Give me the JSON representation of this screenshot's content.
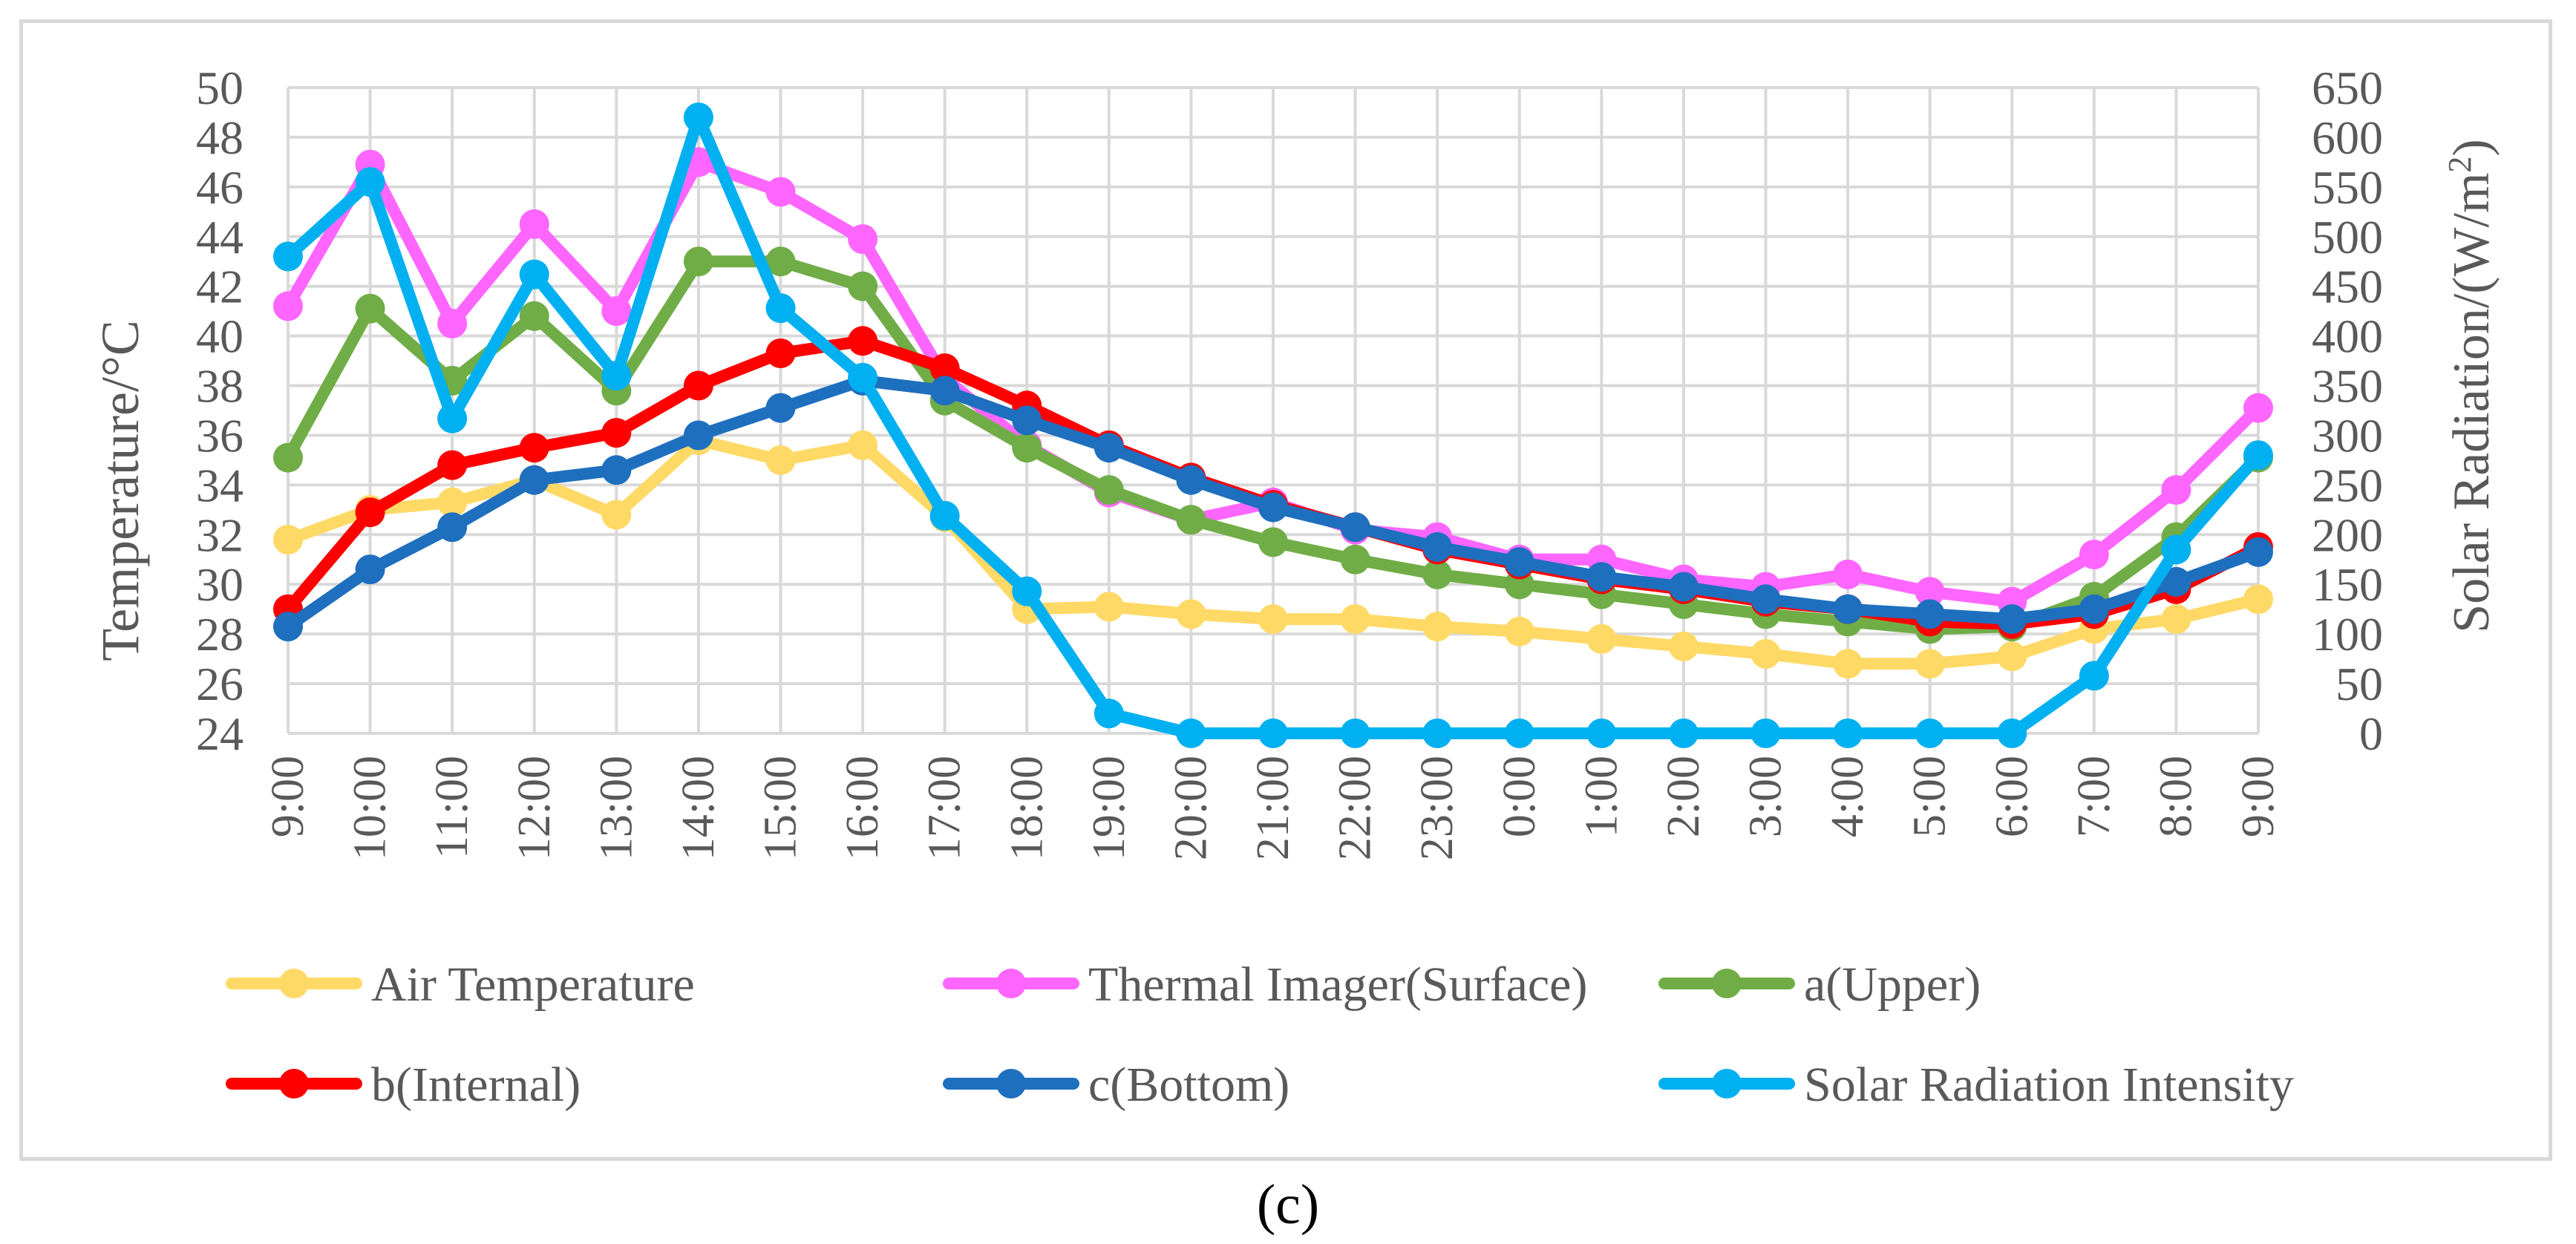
{
  "caption": "(c)",
  "colors": {
    "air": "#FFD966",
    "thermal": "#FF66FF",
    "upper": "#70AD47",
    "internal": "#FF0000",
    "bottom": "#1F6FBF",
    "solar": "#00B0F0",
    "grid": "#d9d9d9",
    "text": "#595959"
  },
  "chart_data": {
    "type": "line",
    "categories": [
      "9:00",
      "10:00",
      "11:00",
      "12:00",
      "13:00",
      "14:00",
      "15:00",
      "16:00",
      "17:00",
      "18:00",
      "19:00",
      "20:00",
      "21:00",
      "22:00",
      "23:00",
      "0:00",
      "1:00",
      "2:00",
      "3:00",
      "4:00",
      "5:00",
      "6:00",
      "7:00",
      "8:00",
      "9:00"
    ],
    "ylabel": "Temperature/°C",
    "ylim": [
      24,
      50
    ],
    "yticks": [
      24,
      26,
      28,
      30,
      32,
      34,
      36,
      38,
      40,
      42,
      44,
      46,
      48,
      50
    ],
    "y2label_main": "Solar Radiation/(W/m",
    "y2label_sup": "2",
    "y2label_end": ")",
    "y2lim": [
      0,
      650
    ],
    "y2ticks": [
      0,
      50,
      100,
      150,
      200,
      250,
      300,
      350,
      400,
      450,
      500,
      550,
      600,
      650
    ],
    "grid": true,
    "legend_position": "bottom",
    "series": [
      {
        "key": "air",
        "name": "Air Temperature",
        "axis": "left",
        "values": [
          31.8,
          33.0,
          33.3,
          34.2,
          32.8,
          35.8,
          35.0,
          35.6,
          32.7,
          29.0,
          29.1,
          28.8,
          28.6,
          28.6,
          28.3,
          28.1,
          27.8,
          27.5,
          27.2,
          26.8,
          26.8,
          27.1,
          28.2,
          28.6,
          29.4
        ]
      },
      {
        "key": "thermal",
        "name": "Thermal Imager(Surface)",
        "axis": "left",
        "values": [
          41.2,
          46.9,
          40.5,
          44.5,
          41.0,
          47.0,
          45.8,
          43.9,
          38.3,
          35.6,
          33.7,
          32.6,
          33.3,
          32.2,
          31.9,
          31.0,
          31.0,
          30.2,
          29.9,
          30.4,
          29.7,
          29.3,
          31.2,
          33.8,
          37.1
        ]
      },
      {
        "key": "upper",
        "name": "a(Upper)",
        "axis": "left",
        "values": [
          35.1,
          41.1,
          38.2,
          40.8,
          37.8,
          43.0,
          43.0,
          42.0,
          37.4,
          35.5,
          33.8,
          32.6,
          31.7,
          31.0,
          30.4,
          30.0,
          29.6,
          29.2,
          28.8,
          28.5,
          28.2,
          28.3,
          29.5,
          31.9,
          35.1
        ]
      },
      {
        "key": "internal",
        "name": "b(Internal)",
        "axis": "left",
        "values": [
          29.0,
          32.9,
          34.8,
          35.5,
          36.1,
          38.0,
          39.3,
          39.8,
          38.7,
          37.2,
          35.6,
          34.3,
          33.2,
          32.3,
          31.4,
          30.8,
          30.2,
          29.8,
          29.3,
          29.0,
          28.5,
          28.4,
          28.8,
          29.8,
          31.5
        ]
      },
      {
        "key": "bottom",
        "name": "c(Bottom)",
        "axis": "left",
        "values": [
          28.3,
          30.6,
          32.3,
          34.2,
          34.6,
          36.0,
          37.1,
          38.2,
          37.8,
          36.6,
          35.5,
          34.2,
          33.1,
          32.3,
          31.5,
          30.9,
          30.3,
          29.9,
          29.4,
          29.0,
          28.8,
          28.6,
          29.0,
          30.1,
          31.3
        ]
      },
      {
        "key": "solar",
        "name": "Solar Radiation Intensity",
        "axis": "right",
        "values": [
          480,
          555,
          317,
          462,
          360,
          620,
          428,
          358,
          219,
          143,
          20,
          0,
          0,
          0,
          0,
          0,
          0,
          0,
          0,
          0,
          0,
          0,
          58,
          185,
          280
        ]
      }
    ]
  }
}
